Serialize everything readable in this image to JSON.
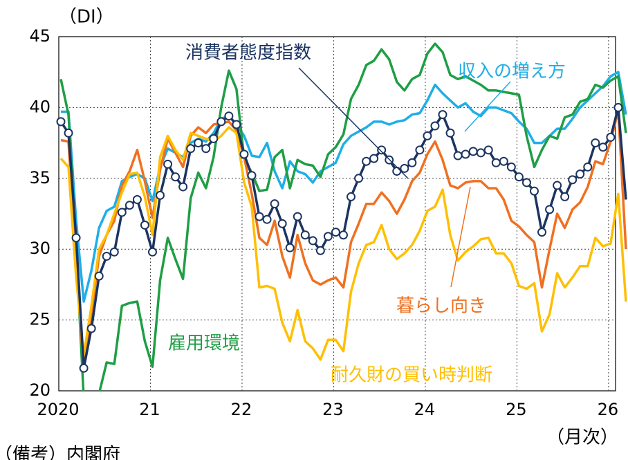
{
  "chart_data": {
    "type": "line",
    "y_label": "（DI）",
    "x_label": "（月次）",
    "source": "（備考）内閣府",
    "categories": [
      "2020",
      null,
      null,
      null,
      null,
      null,
      null,
      null,
      null,
      null,
      null,
      null,
      "21",
      null,
      null,
      null,
      null,
      null,
      null,
      null,
      null,
      null,
      null,
      null,
      "22",
      null,
      null,
      null,
      null,
      null,
      null,
      null,
      null,
      null,
      null,
      null,
      "23",
      null,
      null,
      null,
      null,
      null,
      null,
      null,
      null,
      null,
      null,
      null,
      "24",
      null,
      null,
      null,
      null,
      null,
      null,
      null,
      null,
      null,
      null,
      null,
      "25",
      null,
      null,
      null,
      null,
      null,
      null,
      null,
      null,
      null,
      null,
      null,
      "26",
      null,
      null
    ],
    "ylim": [
      20,
      45
    ],
    "yticks": [
      20,
      25,
      30,
      35,
      40,
      45
    ],
    "grid": true,
    "series": [
      {
        "name": "収入の増え方",
        "color": "#1eaee8",
        "values": [
          39.7,
          39.7,
          32.0,
          26.3,
          28.5,
          31.5,
          32.7,
          33.0,
          34.8,
          35.1,
          35.3,
          35.0,
          33.4,
          35.8,
          37.1,
          36.8,
          36.5,
          37.5,
          37.8,
          37.6,
          38.2,
          39.2,
          39.4,
          38.8,
          38.0,
          36.6,
          36.5,
          37.5,
          35.5,
          34.3,
          36.2,
          35.5,
          35.3,
          34.7,
          35.5,
          35.8,
          36.1,
          37.4,
          38.0,
          38.3,
          38.6,
          39.0,
          39.0,
          38.8,
          39.0,
          39.1,
          39.5,
          39.6,
          40.5,
          41.6,
          41.0,
          40.5,
          40.0,
          40.3,
          39.7,
          39.4,
          40.0,
          40.0,
          39.8,
          39.6,
          39.0,
          38.5,
          37.5,
          37.5,
          38.0,
          38.5,
          38.5,
          39.2,
          40.0,
          40.5,
          41.0,
          41.5,
          42.2,
          42.5,
          39.5
        ]
      },
      {
        "name": "雇用環境",
        "color": "#1f9e45",
        "values": [
          42.0,
          39.5,
          30.0,
          19.5,
          17.0,
          19.8,
          22.0,
          21.9,
          26.0,
          26.2,
          26.3,
          23.5,
          21.7,
          27.8,
          30.8,
          29.3,
          27.9,
          33.6,
          35.4,
          34.3,
          36.5,
          40.0,
          42.6,
          41.3,
          36.4,
          35.4,
          34.1,
          34.2,
          36.5,
          37.0,
          34.3,
          36.3,
          36.0,
          35.9,
          35.1,
          36.7,
          37.2,
          38.1,
          40.6,
          41.6,
          43.0,
          43.3,
          44.1,
          43.4,
          41.8,
          41.2,
          42.0,
          42.3,
          43.8,
          44.5,
          43.9,
          42.3,
          42.0,
          42.2,
          41.9,
          41.6,
          41.2,
          41.2,
          41.1,
          41.0,
          40.9,
          38.0,
          35.8,
          37.0,
          38.0,
          37.8,
          39.3,
          39.5,
          40.4,
          40.6,
          41.6,
          41.4,
          41.9,
          42.2,
          38.2
        ]
      },
      {
        "name": "暮らし向き",
        "color": "#f07020",
        "values": [
          37.7,
          37.6,
          29.0,
          21.5,
          25.5,
          29.5,
          31.0,
          32.0,
          34.5,
          35.5,
          37.0,
          34.8,
          32.2,
          35.6,
          37.8,
          36.8,
          35.8,
          38.0,
          38.6,
          38.2,
          38.8,
          38.9,
          39.0,
          38.4,
          36.5,
          33.9,
          30.8,
          30.3,
          32.0,
          29.5,
          28.0,
          31.0,
          29.0,
          27.8,
          27.5,
          27.8,
          28.0,
          27.3,
          30.5,
          31.8,
          33.2,
          33.2,
          34.0,
          33.4,
          32.5,
          33.5,
          34.8,
          35.4,
          36.7,
          37.6,
          36.3,
          34.5,
          34.3,
          34.7,
          34.8,
          34.8,
          34.3,
          34.3,
          33.5,
          32.0,
          31.6,
          31.0,
          30.5,
          27.3,
          30.0,
          32.5,
          31.5,
          32.8,
          33.3,
          34.4,
          36.2,
          36.0,
          37.6,
          39.8,
          30.0
        ]
      },
      {
        "name": "耐久財の買い時判断",
        "color": "#ffbf00",
        "values": [
          36.4,
          35.8,
          28.0,
          22.5,
          26.0,
          30.0,
          31.0,
          32.5,
          34.0,
          35.3,
          35.4,
          33.7,
          31.0,
          36.5,
          38.0,
          37.0,
          36.3,
          38.2,
          38.0,
          37.8,
          37.6,
          38.0,
          38.6,
          38.2,
          34.7,
          33.0,
          27.3,
          27.4,
          27.2,
          24.8,
          23.5,
          25.7,
          23.5,
          23.0,
          22.2,
          23.6,
          23.6,
          22.8,
          27.0,
          29.0,
          30.3,
          30.5,
          31.7,
          30.0,
          29.3,
          29.7,
          30.3,
          31.3,
          32.7,
          33.0,
          34.2,
          31.0,
          29.2,
          29.8,
          30.2,
          30.7,
          30.8,
          29.7,
          29.7,
          29.0,
          27.4,
          27.2,
          27.6,
          24.2,
          25.4,
          28.3,
          27.3,
          28.0,
          28.8,
          28.8,
          30.8,
          30.2,
          30.4,
          33.9,
          26.3
        ]
      },
      {
        "name": "消費者態度指数",
        "color": "#1c3461",
        "markers": true,
        "values": [
          39.0,
          38.2,
          30.8,
          21.6,
          24.4,
          28.1,
          29.5,
          29.8,
          32.6,
          33.1,
          33.5,
          31.7,
          29.8,
          33.8,
          36.0,
          35.1,
          34.4,
          37.1,
          37.5,
          37.1,
          37.8,
          39.0,
          39.4,
          38.8,
          36.7,
          35.2,
          32.3,
          32.1,
          33.2,
          31.8,
          30.1,
          32.3,
          31.0,
          30.6,
          29.9,
          30.9,
          31.2,
          31.0,
          33.7,
          35.0,
          36.2,
          36.4,
          37.0,
          36.3,
          35.5,
          35.7,
          36.1,
          37.0,
          38.0,
          38.7,
          39.5,
          38.2,
          36.6,
          36.7,
          36.9,
          36.8,
          37.0,
          36.1,
          36.2,
          35.8,
          35.1,
          34.7,
          34.1,
          31.2,
          32.8,
          34.5,
          33.7,
          34.9,
          35.3,
          35.8,
          37.5,
          37.2,
          37.9,
          40.0,
          33.5
        ]
      }
    ]
  }
}
